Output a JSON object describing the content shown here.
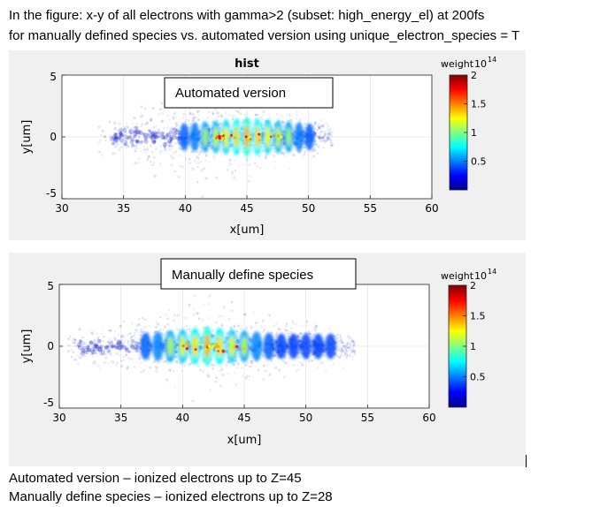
{
  "caption": {
    "line1": "In the figure: x-y of all electrons with gamma>2 (subset: high_energy_el)  at 200fs",
    "line2": "for manually defined species vs. automated version using unique_electron_species = T"
  },
  "footnotes": [
    "Automated version – ionized electrons up to Z=45",
    "Manually define species – ionized electrons up to Z=28"
  ],
  "colors": {
    "figure_bg": "#f0f0f0",
    "axes_bg": "#ffffff",
    "grid": "#e6e6e6",
    "colormap": [
      "#00008f",
      "#0000ff",
      "#0080ff",
      "#00ffff",
      "#80ff80",
      "#ffff00",
      "#ff8000",
      "#ff0000",
      "#800000"
    ]
  },
  "chart_data": [
    {
      "type": "heatmap",
      "title": "hist",
      "annotation": "Automated version",
      "xlabel": "x[um]",
      "ylabel": "y[um]",
      "xlim": [
        30,
        60
      ],
      "ylim": [
        -5,
        5
      ],
      "xticks": [
        "30",
        "35",
        "40",
        "45",
        "50",
        "55",
        "60"
      ],
      "yticks": [
        "5",
        "0",
        "-5"
      ],
      "grid": true,
      "colorbar": {
        "label": "weight",
        "exponent_base": "10",
        "exponent": "14",
        "ticks": [
          "2",
          "1.5",
          "1",
          "0.5"
        ],
        "clim": [
          0,
          2
        ]
      },
      "electron_x_range": [
        33,
        50.5
      ],
      "peak_x": 45,
      "oscillation_count": 13
    },
    {
      "type": "heatmap",
      "annotation": "Manually define species",
      "xlabel": "x[um]",
      "ylabel": "y[um]",
      "xlim": [
        30,
        60
      ],
      "ylim": [
        -5,
        5
      ],
      "xticks": [
        "30",
        "35",
        "40",
        "45",
        "50",
        "55",
        "60"
      ],
      "yticks": [
        "5",
        "0",
        "-5"
      ],
      "grid": true,
      "colorbar": {
        "label": "weight",
        "exponent_base": "10",
        "exponent": "14",
        "ticks": [
          "2",
          "1.5",
          "1",
          "0.5"
        ],
        "clim": [
          0,
          2
        ]
      },
      "electron_x_range": [
        30.5,
        52.5
      ],
      "peak_x": 42,
      "oscillation_count": 16
    }
  ]
}
